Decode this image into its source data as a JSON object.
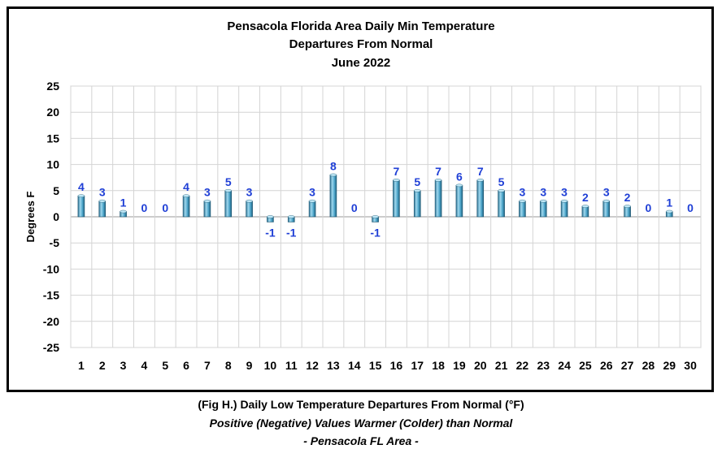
{
  "chart_data": {
    "type": "bar",
    "title": [
      "Pensacola Florida Area Daily Min Temperature",
      "Departures From Normal",
      "June 2022"
    ],
    "xlabel": "",
    "ylabel": "Degrees F",
    "ylim": [
      -25,
      25
    ],
    "yticks": [
      25,
      20,
      15,
      10,
      5,
      0,
      -5,
      -10,
      -15,
      -20,
      -25
    ],
    "categories": [
      "1",
      "2",
      "3",
      "4",
      "5",
      "6",
      "7",
      "8",
      "9",
      "10",
      "11",
      "12",
      "13",
      "14",
      "15",
      "16",
      "17",
      "18",
      "19",
      "20",
      "21",
      "22",
      "23",
      "24",
      "25",
      "26",
      "27",
      "28",
      "29",
      "30"
    ],
    "values": [
      4,
      3,
      1,
      0,
      0,
      4,
      3,
      5,
      3,
      -1,
      -1,
      3,
      8,
      0,
      -1,
      7,
      5,
      7,
      6,
      7,
      5,
      3,
      3,
      3,
      2,
      3,
      2,
      0,
      1,
      0
    ],
    "grid": true,
    "bar_color": "#4aa3c8",
    "label_color": "#1f3fd6"
  },
  "caption": {
    "line1": "(Fig H.) Daily Low Temperature Departures From Normal (°F)",
    "line2": "Positive (Negative) Values Warmer (Colder) than Normal",
    "line3": "- Pensacola FL Area -"
  }
}
